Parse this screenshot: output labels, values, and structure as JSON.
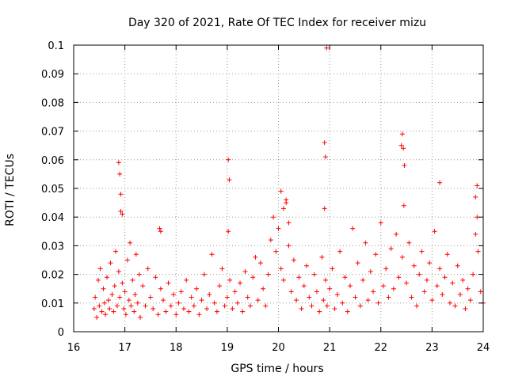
{
  "chart_data": {
    "type": "scatter",
    "title": "Day 320 of 2021, Rate Of TEC Index for receiver mizu",
    "xlabel": "GPS time / hours",
    "ylabel": "ROTI / TECUs",
    "xlim": [
      16,
      24
    ],
    "ylim": [
      0,
      0.1
    ],
    "x_ticks": [
      16,
      17,
      18,
      19,
      20,
      21,
      22,
      23,
      24
    ],
    "y_ticks": [
      0,
      0.01,
      0.02,
      0.03,
      0.04,
      0.05,
      0.06,
      0.07,
      0.08,
      0.09,
      0.1
    ],
    "x_tick_labels": [
      "16",
      "17",
      "18",
      "19",
      "20",
      "21",
      "22",
      "23",
      "24"
    ],
    "y_tick_labels": [
      "0",
      "0.01",
      "0.02",
      "0.03",
      "0.04",
      "0.05",
      "0.06",
      "0.07",
      "0.08",
      "0.09",
      "0.1"
    ],
    "grid": true,
    "marker": "+",
    "marker_color": "#ff0000",
    "series": [
      {
        "name": "ROTI",
        "color": "#ff0000",
        "x": [
          16.4,
          16.42,
          16.45,
          16.48,
          16.5,
          16.52,
          16.55,
          16.58,
          16.6,
          16.62,
          16.65,
          16.68,
          16.7,
          16.72,
          16.75,
          16.78,
          16.8,
          16.82,
          16.85,
          16.88,
          16.9,
          16.92,
          16.95,
          16.98,
          17.0,
          17.02,
          17.05,
          17.08,
          17.1,
          17.12,
          17.15,
          17.18,
          17.2,
          17.22,
          17.25,
          17.28,
          17.3,
          17.35,
          17.4,
          17.45,
          17.5,
          17.55,
          17.6,
          17.65,
          17.7,
          17.75,
          17.8,
          17.85,
          17.9,
          17.95,
          18.0,
          18.05,
          18.1,
          18.15,
          18.2,
          18.25,
          18.3,
          18.35,
          18.4,
          18.45,
          18.5,
          18.55,
          18.6,
          18.65,
          18.7,
          18.75,
          18.8,
          18.85,
          18.9,
          18.95,
          19.0,
          19.02,
          19.05,
          19.1,
          19.15,
          19.2,
          19.25,
          19.3,
          19.35,
          19.4,
          19.45,
          19.5,
          19.55,
          19.6,
          19.65,
          19.7,
          19.75,
          19.8,
          19.85,
          19.9,
          19.95,
          20.0,
          20.05,
          20.1,
          20.15,
          20.2,
          20.25,
          20.3,
          20.35,
          20.4,
          20.45,
          20.5,
          20.55,
          20.6,
          20.65,
          20.7,
          20.75,
          20.8,
          20.85,
          20.88,
          20.9,
          20.92,
          20.95,
          21.0,
          21.05,
          21.1,
          21.15,
          21.2,
          21.25,
          21.3,
          21.35,
          21.4,
          21.45,
          21.5,
          21.55,
          21.6,
          21.65,
          21.7,
          21.75,
          21.8,
          21.85,
          21.9,
          21.95,
          22.0,
          22.05,
          22.1,
          22.15,
          22.2,
          22.25,
          22.3,
          22.35,
          22.4,
          22.42,
          22.45,
          22.5,
          22.55,
          22.6,
          22.65,
          22.7,
          22.75,
          22.8,
          22.85,
          22.9,
          22.95,
          23.0,
          23.05,
          23.1,
          23.15,
          23.2,
          23.25,
          23.3,
          23.35,
          23.4,
          23.45,
          23.5,
          23.55,
          23.6,
          23.65,
          23.7,
          23.75,
          23.8,
          23.85,
          23.88,
          23.9,
          23.95,
          24.0,
          16.88,
          16.9,
          16.92,
          16.95,
          17.68,
          17.7,
          19.02,
          19.04,
          20.05,
          20.1,
          20.15,
          20.2,
          20.9,
          20.92,
          20.94,
          22.42,
          22.44,
          22.46,
          23.15,
          23.85,
          23.88
        ],
        "y": [
          0.008,
          0.012,
          0.005,
          0.018,
          0.009,
          0.022,
          0.007,
          0.015,
          0.01,
          0.006,
          0.019,
          0.011,
          0.008,
          0.024,
          0.013,
          0.007,
          0.016,
          0.028,
          0.009,
          0.021,
          0.012,
          0.042,
          0.017,
          0.008,
          0.014,
          0.006,
          0.025,
          0.011,
          0.031,
          0.009,
          0.018,
          0.007,
          0.013,
          0.027,
          0.01,
          0.02,
          0.005,
          0.016,
          0.009,
          0.022,
          0.012,
          0.008,
          0.019,
          0.006,
          0.015,
          0.011,
          0.007,
          0.017,
          0.009,
          0.013,
          0.006,
          0.01,
          0.014,
          0.008,
          0.018,
          0.007,
          0.012,
          0.009,
          0.015,
          0.006,
          0.011,
          0.02,
          0.008,
          0.013,
          0.027,
          0.01,
          0.007,
          0.016,
          0.022,
          0.009,
          0.012,
          0.035,
          0.018,
          0.008,
          0.014,
          0.01,
          0.017,
          0.007,
          0.021,
          0.012,
          0.009,
          0.019,
          0.026,
          0.011,
          0.024,
          0.015,
          0.009,
          0.02,
          0.032,
          0.04,
          0.028,
          0.036,
          0.022,
          0.018,
          0.045,
          0.03,
          0.014,
          0.025,
          0.011,
          0.019,
          0.008,
          0.016,
          0.023,
          0.012,
          0.009,
          0.02,
          0.014,
          0.007,
          0.026,
          0.011,
          0.043,
          0.018,
          0.009,
          0.015,
          0.022,
          0.008,
          0.013,
          0.028,
          0.01,
          0.019,
          0.007,
          0.016,
          0.036,
          0.012,
          0.024,
          0.009,
          0.018,
          0.031,
          0.011,
          0.021,
          0.014,
          0.027,
          0.01,
          0.038,
          0.016,
          0.022,
          0.012,
          0.029,
          0.015,
          0.034,
          0.019,
          0.065,
          0.026,
          0.044,
          0.017,
          0.031,
          0.012,
          0.023,
          0.009,
          0.02,
          0.028,
          0.014,
          0.018,
          0.024,
          0.011,
          0.035,
          0.016,
          0.022,
          0.013,
          0.019,
          0.027,
          0.01,
          0.017,
          0.009,
          0.023,
          0.013,
          0.018,
          0.008,
          0.015,
          0.011,
          0.02,
          0.034,
          0.051,
          0.028,
          0.014,
          0.01,
          0.059,
          0.055,
          0.048,
          0.041,
          0.036,
          0.035,
          0.06,
          0.053,
          0.049,
          0.043,
          0.046,
          0.038,
          0.066,
          0.061,
          0.099,
          0.069,
          0.064,
          0.058,
          0.052,
          0.047,
          0.04
        ]
      }
    ]
  }
}
